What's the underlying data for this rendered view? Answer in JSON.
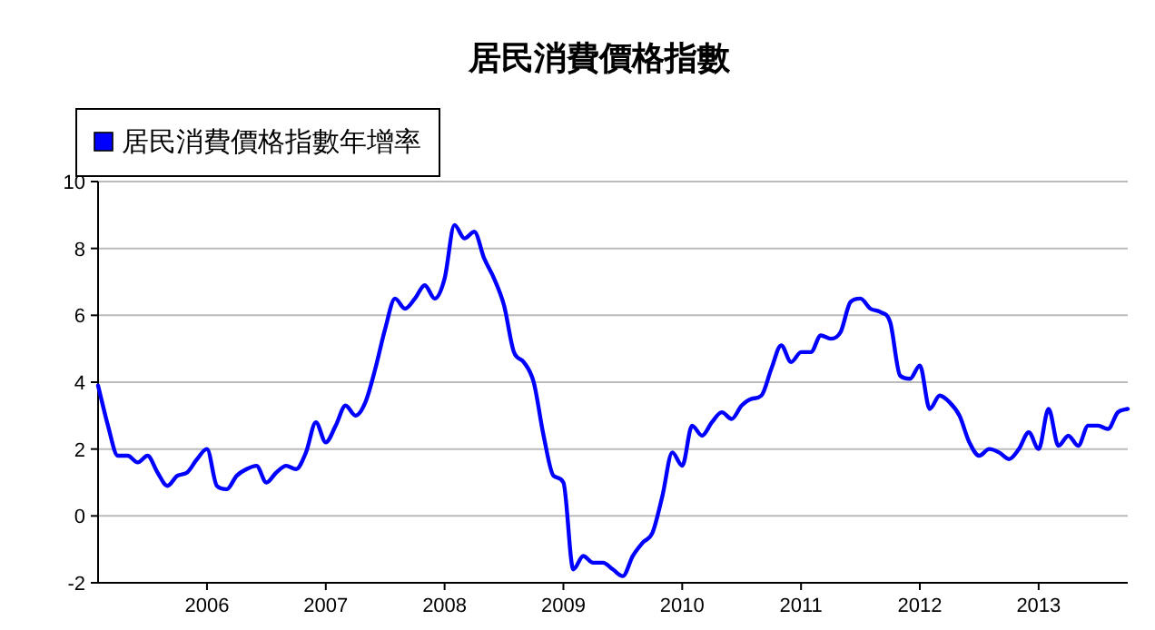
{
  "chart_data": {
    "type": "line",
    "title": "居民消費價格指數",
    "x": [
      "2005-02",
      "2005-03",
      "2005-04",
      "2005-05",
      "2005-06",
      "2005-07",
      "2005-08",
      "2005-09",
      "2005-10",
      "2005-11",
      "2005-12",
      "2006-01",
      "2006-02",
      "2006-03",
      "2006-04",
      "2006-05",
      "2006-06",
      "2006-07",
      "2006-08",
      "2006-09",
      "2006-10",
      "2006-11",
      "2006-12",
      "2007-01",
      "2007-02",
      "2007-03",
      "2007-04",
      "2007-05",
      "2007-06",
      "2007-07",
      "2007-08",
      "2007-09",
      "2007-10",
      "2007-11",
      "2007-12",
      "2008-01",
      "2008-02",
      "2008-03",
      "2008-04",
      "2008-05",
      "2008-06",
      "2008-07",
      "2008-08",
      "2008-09",
      "2008-10",
      "2008-11",
      "2008-12",
      "2009-01",
      "2009-02",
      "2009-03",
      "2009-04",
      "2009-05",
      "2009-06",
      "2009-07",
      "2009-08",
      "2009-09",
      "2009-10",
      "2009-11",
      "2009-12",
      "2010-01",
      "2010-02",
      "2010-03",
      "2010-04",
      "2010-05",
      "2010-06",
      "2010-07",
      "2010-08",
      "2010-09",
      "2010-10",
      "2010-11",
      "2010-12",
      "2011-01",
      "2011-02",
      "2011-03",
      "2011-04",
      "2011-05",
      "2011-06",
      "2011-07",
      "2011-08",
      "2011-09",
      "2011-10",
      "2011-11",
      "2011-12",
      "2012-01",
      "2012-02",
      "2012-03",
      "2012-04",
      "2012-05",
      "2012-06",
      "2012-07",
      "2012-08",
      "2012-09",
      "2012-10",
      "2012-11",
      "2012-12",
      "2013-01",
      "2013-02",
      "2013-03",
      "2013-04",
      "2013-05",
      "2013-06",
      "2013-07",
      "2013-08",
      "2013-09",
      "2013-10"
    ],
    "series": [
      {
        "name": "居民消費價格指數年增率",
        "color": "#0000ff",
        "values": [
          3.9,
          2.7,
          1.8,
          1.8,
          1.6,
          1.8,
          1.3,
          0.9,
          1.2,
          1.3,
          1.7,
          2.0,
          0.9,
          0.8,
          1.2,
          1.4,
          1.5,
          1.0,
          1.3,
          1.5,
          1.4,
          1.9,
          2.8,
          2.2,
          2.7,
          3.3,
          3.0,
          3.4,
          4.4,
          5.6,
          6.5,
          6.2,
          6.5,
          6.9,
          6.5,
          7.1,
          8.7,
          8.3,
          8.5,
          7.7,
          7.1,
          6.3,
          4.9,
          4.6,
          4.0,
          2.4,
          1.2,
          1.0,
          -1.6,
          -1.2,
          -1.4,
          -1.4,
          -1.6,
          -1.8,
          -1.2,
          -0.8,
          -0.5,
          0.6,
          1.9,
          1.5,
          2.7,
          2.4,
          2.8,
          3.1,
          2.9,
          3.3,
          3.5,
          3.6,
          4.4,
          5.1,
          4.6,
          4.9,
          4.9,
          5.4,
          5.3,
          5.5,
          6.4,
          6.5,
          6.2,
          6.1,
          5.8,
          4.2,
          4.1,
          4.5,
          3.2,
          3.6,
          3.4,
          3.0,
          2.2,
          1.8,
          2.0,
          1.9,
          1.7,
          2.0,
          2.5,
          2.0,
          3.2,
          2.1,
          2.4,
          2.1,
          2.7,
          2.7,
          2.6,
          3.1,
          3.2
        ]
      }
    ],
    "xlim": [
      "2005-02",
      "2013-10"
    ],
    "xticks": [
      "2006",
      "2007",
      "2008",
      "2009",
      "2010",
      "2011",
      "2012",
      "2013"
    ],
    "ylim": [
      -2,
      10
    ],
    "yticks": [
      -2,
      0,
      2,
      4,
      6,
      8,
      10
    ],
    "grid": "y",
    "legend": "top left",
    "line_style": "solid"
  }
}
